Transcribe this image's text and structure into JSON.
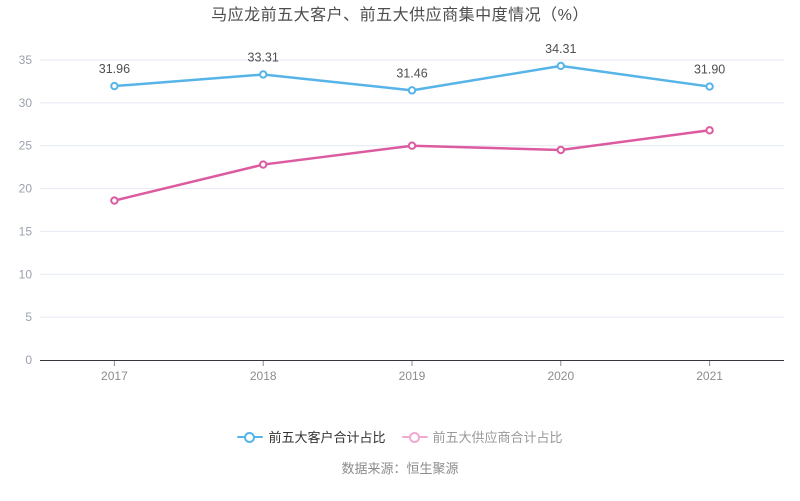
{
  "chart_data": {
    "type": "line",
    "title": "马应龙前五大客户、前五大供应商集中度情况（%）",
    "categories": [
      "2017",
      "2018",
      "2019",
      "2020",
      "2021"
    ],
    "xlabel": "",
    "ylabel": "",
    "ylim": [
      0,
      35
    ],
    "ytick_step": 5,
    "grid": true,
    "legend_position": "bottom",
    "source": "数据来源：恒生聚源",
    "series": [
      {
        "id": "customers",
        "name": "前五大客户合计占比",
        "color": "#56b4e8",
        "legend_color": "#56b4e8",
        "values": [
          31.96,
          33.31,
          31.46,
          34.31,
          31.9
        ],
        "point_labels": [
          "31.96",
          "33.31",
          "31.46",
          "34.31",
          "31.90"
        ]
      },
      {
        "id": "suppliers",
        "name": "前五大供应商合计占比",
        "color": "#dc5a9f",
        "legend_color": "#f2a9cf",
        "values": [
          18.6,
          22.8,
          25.0,
          24.5,
          26.8
        ],
        "point_labels": null
      }
    ],
    "colors": {
      "grid_line": "#e4e9f4",
      "axis_line": "#33363c",
      "tick_label": "#8c8c8c",
      "y_tick_label": "#9aa1ad",
      "point_label": "#4f4f4f"
    }
  }
}
